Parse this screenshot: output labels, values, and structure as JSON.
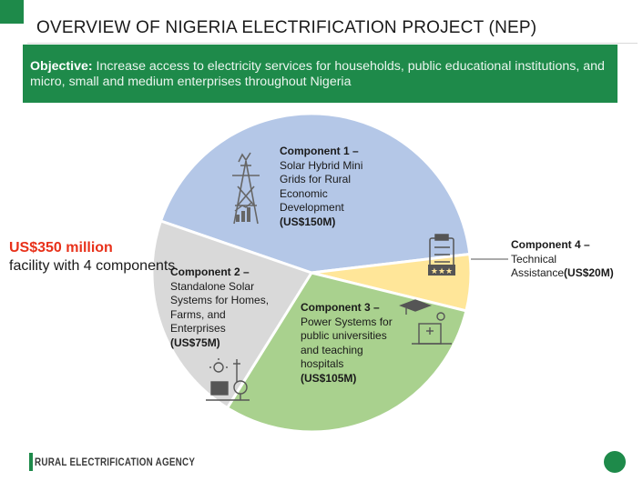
{
  "page": {
    "title": "OVERVIEW OF NIGERIA ELECTRIFICATION PROJECT (NEP)"
  },
  "objective": {
    "label": "Objective:",
    "text": " Increase access to electricity services for households, public educational institutions, and micro, small and medium enterprises throughout Nigeria"
  },
  "facility": {
    "amount": "US$350 million",
    "rest": "facility with 4 components"
  },
  "components": [
    {
      "heading": "Component 1 –",
      "desc": "Solar Hybrid Mini Grids for Rural Economic Development",
      "amount": "(US$150M)",
      "value": 150,
      "color": "#b4c7e7",
      "icon": "power-pylon-icon"
    },
    {
      "heading": "Component 4 –",
      "desc": "Technical Assistance",
      "amount": "(US$20M)",
      "value": 20,
      "color": "#ffe699",
      "icon": "checklist-icon"
    },
    {
      "heading": "Component 3 –",
      "desc": "Power Systems for public universities and teaching hospitals",
      "amount": "(US$105M)",
      "value": 105,
      "color": "#a9d18e",
      "icon": "graduation-hospital-icon"
    },
    {
      "heading": "Component 2 –",
      "desc": "Standalone Solar Systems for Homes, Farms, and Enterprises",
      "amount": "(US$75M)",
      "value": 75,
      "color": "#d9d9d9",
      "icon": "solar-farm-icon"
    }
  ],
  "footer": {
    "agency": "RURAL ELECTRIFICATION AGENCY"
  },
  "colors": {
    "brand_green": "#1e8a4a",
    "highlight_red": "#e8311a"
  }
}
